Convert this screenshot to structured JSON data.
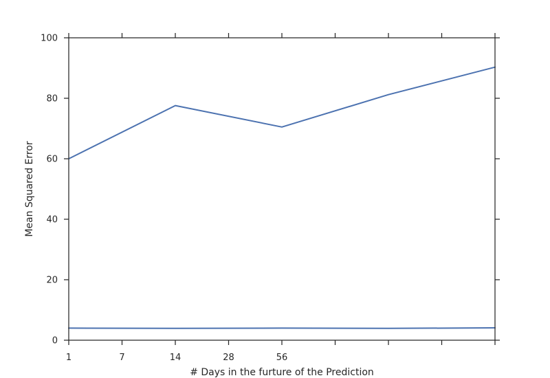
{
  "chart_data": {
    "type": "line",
    "title": "",
    "xlabel": "# Days in the furture of the Prediction",
    "ylabel": "Mean Squared Error",
    "x": [
      0,
      1,
      2,
      3,
      4,
      5,
      6,
      7,
      8
    ],
    "xtick_labels": [
      "1",
      "7",
      "14",
      "28",
      "56",
      "",
      "",
      "",
      ""
    ],
    "yticks": [
      0,
      20,
      40,
      60,
      80,
      100
    ],
    "xlim": [
      0,
      8
    ],
    "ylim": [
      0,
      100
    ],
    "grid": false,
    "series": [
      {
        "x": [
          0,
          2,
          4,
          6,
          8
        ],
        "values": [
          60.0,
          77.6,
          70.5,
          81.2,
          90.3
        ],
        "color": "#4c72b0"
      },
      {
        "x": [
          0,
          2,
          4,
          6,
          8
        ],
        "values": [
          4.0,
          3.9,
          4.0,
          3.9,
          4.1
        ],
        "color": "#4c72b0"
      }
    ]
  }
}
